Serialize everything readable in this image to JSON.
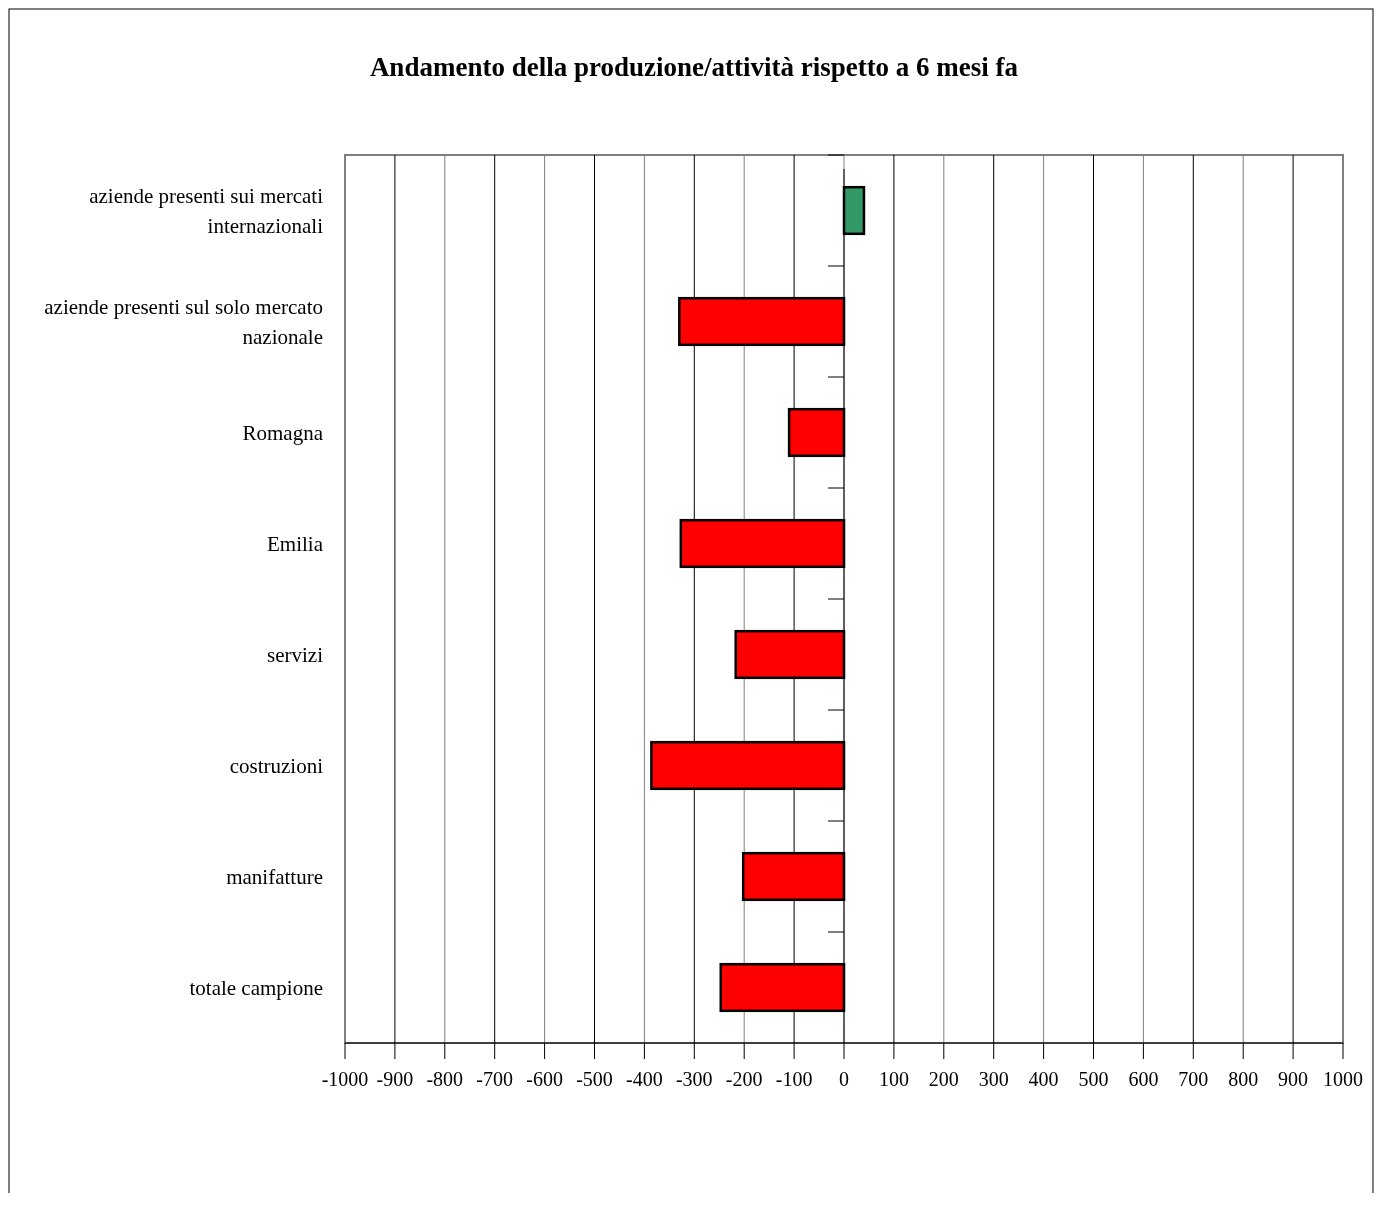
{
  "chart_data": {
    "type": "bar",
    "orientation": "horizontal",
    "title": "Andamento della produzione/attività rispetto a 6 mesi fa",
    "categories": [
      "aziende presenti sui mercati internazionali",
      "aziende presenti sul solo mercato nazionale",
      "Romagna",
      "Emilia",
      "servizi",
      "costruzioni",
      "manifatture",
      "totale campione"
    ],
    "values": [
      40,
      -330,
      -110,
      -327,
      -217,
      -386,
      -202,
      -247
    ],
    "colors": [
      "#339966",
      "#ff0000",
      "#ff0000",
      "#ff0000",
      "#ff0000",
      "#ff0000",
      "#ff0000",
      "#ff0000"
    ],
    "xlim": [
      -1000,
      1000
    ],
    "xticks": [
      -1000,
      -900,
      -800,
      -700,
      -600,
      -500,
      -400,
      -300,
      -200,
      -100,
      0,
      100,
      200,
      300,
      400,
      500,
      600,
      700,
      800,
      900,
      1000
    ],
    "grid": "x"
  }
}
